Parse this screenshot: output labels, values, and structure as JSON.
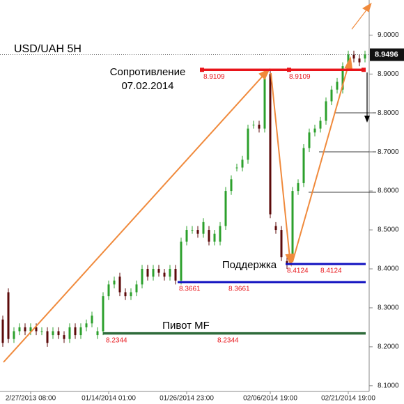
{
  "chart_data": {
    "type": "candlestick",
    "title": "USD/UAH 5H",
    "categories": [
      null,
      null,
      null,
      null,
      null,
      "2/27/2013 08:00",
      null,
      null,
      null,
      null,
      null,
      null,
      null,
      null,
      null,
      null,
      null,
      null,
      null,
      "01/14/2014 01:00",
      null,
      null,
      null,
      null,
      null,
      null,
      null,
      null,
      null,
      null,
      null,
      null,
      null,
      "01/26/2014 23:00",
      null,
      null,
      null,
      null,
      null,
      null,
      null,
      null,
      null,
      null,
      null,
      null,
      null,
      null,
      "02/06/2014 19:00",
      null,
      null,
      null,
      null,
      null,
      null,
      null,
      null,
      null,
      null,
      null,
      null,
      null,
      "02/21/2014 19:00",
      null,
      null,
      null
    ],
    "open": [
      8.27,
      8.34,
      8.22,
      8.24,
      8.25,
      8.24,
      8.25,
      8.24,
      8.24,
      8.23,
      8.24,
      8.23,
      8.22,
      8.25,
      8.23,
      8.25,
      8.26,
      8.23,
      8.24,
      8.33,
      8.36,
      8.38,
      8.34,
      8.33,
      8.34,
      8.36,
      8.4,
      8.38,
      8.4,
      8.39,
      8.38,
      8.4,
      8.37,
      8.47,
      8.5,
      8.5,
      8.49,
      8.5,
      8.47,
      8.47,
      8.51,
      8.6,
      8.66,
      8.66,
      8.68,
      8.77,
      8.77,
      8.76,
      8.9,
      8.51,
      8.5,
      8.42,
      8.43,
      8.6,
      8.62,
      8.71,
      8.75,
      8.76,
      8.78,
      8.83,
      8.86,
      8.86,
      8.92,
      8.95,
      8.94,
      8.94
    ],
    "high": [
      8.28,
      8.35,
      8.25,
      8.26,
      8.26,
      8.26,
      8.26,
      8.25,
      8.25,
      8.25,
      8.25,
      8.24,
      8.26,
      8.26,
      8.26,
      8.27,
      8.29,
      8.25,
      8.34,
      8.37,
      8.38,
      8.39,
      8.35,
      8.35,
      8.37,
      8.41,
      8.41,
      8.41,
      8.41,
      8.4,
      8.41,
      8.41,
      8.48,
      8.51,
      8.51,
      8.51,
      8.53,
      8.51,
      8.5,
      8.52,
      8.61,
      8.64,
      8.67,
      8.69,
      8.77,
      8.78,
      8.78,
      8.91,
      8.91,
      8.52,
      8.51,
      8.43,
      8.61,
      8.63,
      8.72,
      8.76,
      8.77,
      8.79,
      8.84,
      8.87,
      8.89,
      8.93,
      8.96,
      8.96,
      8.95,
      8.96
    ],
    "low": [
      8.2,
      8.21,
      8.21,
      8.23,
      8.23,
      8.23,
      8.23,
      8.23,
      8.2,
      8.22,
      8.22,
      8.21,
      8.21,
      8.22,
      8.22,
      8.24,
      8.25,
      8.22,
      8.23,
      8.32,
      8.35,
      8.33,
      8.32,
      8.32,
      8.33,
      8.35,
      8.37,
      8.37,
      8.38,
      8.37,
      8.37,
      8.36,
      8.36,
      8.46,
      8.49,
      8.48,
      8.48,
      8.46,
      8.46,
      8.46,
      8.5,
      8.59,
      8.65,
      8.65,
      8.67,
      8.76,
      8.75,
      8.75,
      8.53,
      8.49,
      8.42,
      8.4,
      8.42,
      8.59,
      8.61,
      8.7,
      8.74,
      8.75,
      8.77,
      8.82,
      8.85,
      8.85,
      8.91,
      8.93,
      8.92,
      8.93
    ],
    "close": [
      8.21,
      8.22,
      8.24,
      8.25,
      8.24,
      8.25,
      8.24,
      8.24,
      8.21,
      8.24,
      8.23,
      8.22,
      8.25,
      8.23,
      8.25,
      8.26,
      8.28,
      8.24,
      8.33,
      8.36,
      8.37,
      8.34,
      8.33,
      8.34,
      8.36,
      8.4,
      8.38,
      8.4,
      8.39,
      8.38,
      8.4,
      8.37,
      8.47,
      8.5,
      8.5,
      8.49,
      8.52,
      8.47,
      8.49,
      8.51,
      8.6,
      8.63,
      8.66,
      8.68,
      8.76,
      8.77,
      8.76,
      8.9,
      8.54,
      8.5,
      8.43,
      8.41,
      8.6,
      8.62,
      8.71,
      8.75,
      8.76,
      8.78,
      8.83,
      8.86,
      8.88,
      8.92,
      8.95,
      8.94,
      8.93,
      8.95
    ],
    "up_color": "#2ca02c",
    "down_color": "#5c0a0a",
    "ylim": [
      8.08,
      9.09
    ],
    "yticks": [
      {
        "value": 8.1,
        "label": "8.1000"
      },
      {
        "value": 8.2,
        "label": "8.2000"
      },
      {
        "value": 8.3,
        "label": "8.3000"
      },
      {
        "value": 8.4,
        "label": "8.4000"
      },
      {
        "value": 8.5,
        "label": "8.5000"
      },
      {
        "value": 8.6,
        "label": "8.6000"
      },
      {
        "value": 8.7,
        "label": "8.7000"
      },
      {
        "value": 8.8,
        "label": "8.8000"
      },
      {
        "value": 8.9,
        "label": "8.9000"
      },
      {
        "value": 9.0,
        "label": "9.0000"
      }
    ],
    "last": 8.9496,
    "levels": [
      {
        "value": 8.9109,
        "color": "#e8141a"
      },
      {
        "value": 8.4124,
        "color": "#1010c0"
      },
      {
        "value": 8.3661,
        "color": "#1010c0"
      },
      {
        "value": 8.2344,
        "color": "#2e6b3a"
      }
    ],
    "annotations": [
      "Сопротивление",
      "07.02.2014",
      "Поддержка",
      "Пивот MF"
    ]
  }
}
